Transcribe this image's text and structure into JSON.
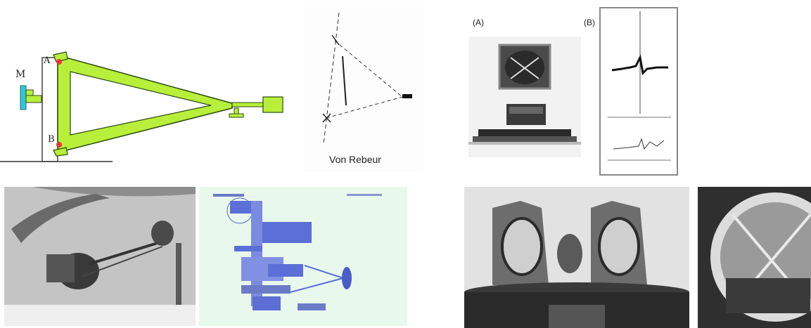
{
  "diagram": {
    "label_M": "M",
    "label_A": "A",
    "label_B": "B",
    "colors": {
      "frame": "#b8ef3a",
      "outline": "#2b4a10",
      "pivot": "#e53935",
      "mirror": "#33c5d8"
    }
  },
  "von_rebeur": {
    "caption": "Von Rebeur"
  },
  "panel_a": {
    "label": "(A)"
  },
  "panel_b": {
    "label": "(B)"
  },
  "blue_drawing": {
    "color": "#5b6fd6"
  }
}
